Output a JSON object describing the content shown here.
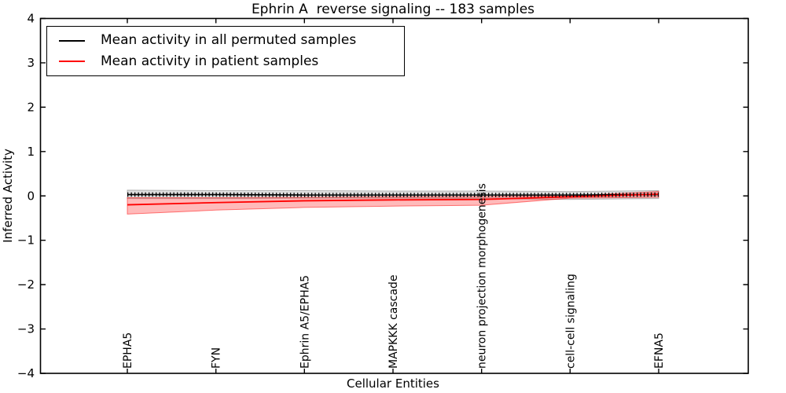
{
  "title": "Ephrin A  reverse signaling -- 183 samples",
  "legend": {
    "items": [
      {
        "label": "Mean activity in all permuted samples",
        "color": "#000000"
      },
      {
        "label": "Mean activity in patient samples",
        "color": "#ff0000"
      }
    ]
  },
  "chart_data": {
    "type": "line",
    "title": "Ephrin A  reverse signaling -- 183 samples",
    "xlabel": "Cellular Entities",
    "ylabel": "Inferred Activity",
    "ylim": [
      -4,
      4
    ],
    "yticks": [
      "4",
      "3",
      "2",
      "1",
      "0",
      "−1",
      "−2",
      "−3",
      "−4"
    ],
    "ytick_values": [
      4,
      3,
      2,
      1,
      0,
      -1,
      -2,
      -3,
      -4
    ],
    "grid": false,
    "legend_position": "upper left",
    "categories": [
      "EPHA5",
      "FYN",
      "Ephrin A5/EPHA5",
      "MAPKKK cascade",
      "neuron projection morphogenesis",
      "cell-cell signaling",
      "EFNA5"
    ],
    "series": [
      {
        "name": "Mean activity in all permuted samples",
        "color": "#000000",
        "marker": "vertical-tick",
        "values": [
          0.03,
          0.03,
          0.02,
          0.02,
          0.02,
          0.02,
          0.03
        ],
        "band_high": [
          0.13,
          0.12,
          0.12,
          0.11,
          0.11,
          0.1,
          0.12
        ],
        "band_low": [
          -0.06,
          -0.06,
          -0.05,
          -0.05,
          -0.06,
          -0.08,
          -0.06
        ],
        "band_fill": "rgba(0,0,0,0.13)",
        "band_edge": "rgba(0,0,0,0.25)"
      },
      {
        "name": "Mean activity in patient samples",
        "color": "#ff0000",
        "marker": "none",
        "values": [
          -0.2,
          -0.15,
          -0.11,
          -0.09,
          -0.08,
          -0.02,
          0.04
        ],
        "band_high": [
          -0.04,
          -0.04,
          -0.03,
          -0.02,
          -0.02,
          0.0,
          0.1
        ],
        "band_low": [
          -0.41,
          -0.32,
          -0.26,
          -0.23,
          -0.21,
          -0.05,
          -0.03
        ],
        "band_fill": "rgba(255,0,0,0.27)",
        "band_edge": "rgba(255,0,0,0.5)"
      }
    ]
  }
}
